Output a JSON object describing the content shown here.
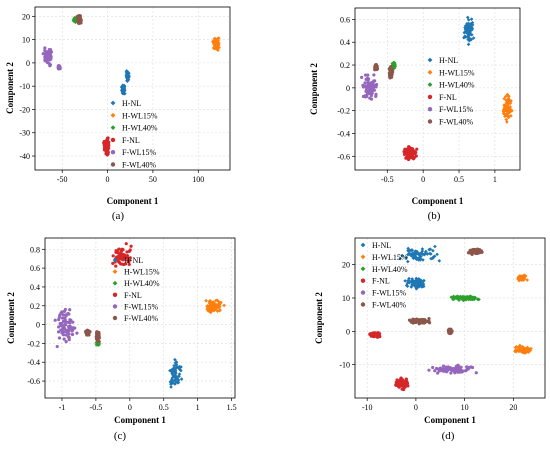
{
  "chart_data": [
    {
      "type": "scatter",
      "caption": "(a)",
      "xlabel": "Component 1",
      "ylabel": "Component 2",
      "xlim": [
        -80,
        135
      ],
      "ylim": [
        -46,
        24
      ],
      "xticks": [
        -50,
        0,
        50,
        100
      ],
      "yticks": [
        -40,
        -30,
        -20,
        -10,
        0,
        10,
        20
      ],
      "legend": "center-right",
      "grid": true,
      "series": [
        {
          "name": "H-NL",
          "color": "#1f77b4",
          "marker": "diamond",
          "clusters": [
            {
              "x": [
                15,
                20
              ],
              "y": [
                -14,
                -9
              ]
            },
            {
              "x": [
                20,
                24
              ],
              "y": [
                -8,
                -3
              ]
            }
          ]
        },
        {
          "name": "H-WL15%",
          "color": "#ff7f0e",
          "marker": "diamond",
          "clusters": [
            {
              "x": [
                115,
                124
              ],
              "y": [
                5,
                12
              ]
            }
          ]
        },
        {
          "name": "H-WL40%",
          "color": "#2ca02c",
          "marker": "diamond",
          "clusters": [
            {
              "x": [
                -38,
                -33
              ],
              "y": [
                17,
                20
              ]
            }
          ]
        },
        {
          "name": "F-NL",
          "color": "#d62728",
          "marker": "circle",
          "clusters": [
            {
              "x": [
                -5,
                3
              ],
              "y": [
                -41,
                -31
              ]
            }
          ]
        },
        {
          "name": "F-WL15%",
          "color": "#9467bd",
          "marker": "circle",
          "clusters": [
            {
              "x": [
                -72,
                -60
              ],
              "y": [
                -2,
                7
              ]
            },
            {
              "x": [
                -55,
                -52
              ],
              "y": [
                -3,
                -1
              ]
            }
          ]
        },
        {
          "name": "F-WL40%",
          "color": "#8c564b",
          "marker": "circle",
          "clusters": [
            {
              "x": [
                -34,
                -28
              ],
              "y": [
                16,
                21
              ]
            }
          ]
        }
      ]
    },
    {
      "type": "scatter",
      "caption": "(b)",
      "xlabel": "Component 1",
      "ylabel": "Component 2",
      "xlim": [
        -0.95,
        1.35
      ],
      "ylim": [
        -0.72,
        0.7
      ],
      "xticks": [
        -0.5,
        0.0,
        0.5,
        1.0
      ],
      "yticks": [
        -0.6,
        -0.4,
        -0.2,
        0.0,
        0.2,
        0.4,
        0.6
      ],
      "legend": "center",
      "grid": true,
      "series": [
        {
          "name": "H-NL",
          "color": "#1f77b4",
          "marker": "diamond",
          "clusters": [
            {
              "x": [
                0.55,
                0.72
              ],
              "y": [
                0.35,
                0.64
              ]
            }
          ]
        },
        {
          "name": "H-WL15%",
          "color": "#ff7f0e",
          "marker": "diamond",
          "clusters": [
            {
              "x": [
                1.1,
                1.25
              ],
              "y": [
                -0.32,
                -0.02
              ]
            }
          ]
        },
        {
          "name": "H-WL40%",
          "color": "#2ca02c",
          "marker": "diamond",
          "clusters": [
            {
              "x": [
                -0.44,
                -0.38
              ],
              "y": [
                0.16,
                0.24
              ]
            }
          ]
        },
        {
          "name": "F-NL",
          "color": "#d62728",
          "marker": "circle",
          "clusters": [
            {
              "x": [
                -0.3,
                -0.07
              ],
              "y": [
                -0.66,
                -0.48
              ]
            }
          ]
        },
        {
          "name": "F-WL15%",
          "color": "#9467bd",
          "marker": "circle",
          "clusters": [
            {
              "x": [
                -0.88,
                -0.6
              ],
              "y": [
                -0.15,
                0.15
              ]
            }
          ]
        },
        {
          "name": "F-WL40%",
          "color": "#8c564b",
          "marker": "circle",
          "clusters": [
            {
              "x": [
                -0.48,
                -0.42
              ],
              "y": [
                0.07,
                0.2
              ]
            },
            {
              "x": [
                -0.68,
                -0.63
              ],
              "y": [
                0.15,
                0.21
              ]
            }
          ]
        }
      ]
    },
    {
      "type": "scatter",
      "caption": "(c)",
      "xlabel": "Component 1",
      "ylabel": "Component 2",
      "xlim": [
        -1.25,
        1.55
      ],
      "ylim": [
        -0.78,
        0.92
      ],
      "xticks": [
        -1.0,
        -0.5,
        0.0,
        0.5,
        1.0,
        1.5
      ],
      "yticks": [
        -0.6,
        -0.4,
        -0.2,
        0.0,
        0.2,
        0.4,
        0.6,
        0.8
      ],
      "legend": "center",
      "grid": true,
      "series": [
        {
          "name": "H-NL",
          "color": "#1f77b4",
          "marker": "diamond",
          "clusters": [
            {
              "x": [
                0.55,
                0.78
              ],
              "y": [
                -0.7,
                -0.32
              ]
            }
          ]
        },
        {
          "name": "H-WL15%",
          "color": "#ff7f0e",
          "marker": "diamond",
          "clusters": [
            {
              "x": [
                1.05,
                1.42
              ],
              "y": [
                0.1,
                0.3
              ]
            }
          ]
        },
        {
          "name": "H-WL40%",
          "color": "#2ca02c",
          "marker": "diamond",
          "clusters": [
            {
              "x": [
                -0.5,
                -0.44
              ],
              "y": [
                -0.23,
                -0.17
              ]
            }
          ]
        },
        {
          "name": "F-NL",
          "color": "#d62728",
          "marker": "circle",
          "clusters": [
            {
              "x": [
                -0.3,
                0.05
              ],
              "y": [
                0.58,
                0.88
              ]
            }
          ]
        },
        {
          "name": "F-WL15%",
          "color": "#9467bd",
          "marker": "circle",
          "clusters": [
            {
              "x": [
                -1.15,
                -0.72
              ],
              "y": [
                -0.28,
                0.22
              ]
            }
          ]
        },
        {
          "name": "F-WL40%",
          "color": "#8c564b",
          "marker": "circle",
          "clusters": [
            {
              "x": [
                -0.66,
                -0.58
              ],
              "y": [
                -0.12,
                -0.05
              ]
            },
            {
              "x": [
                -0.5,
                -0.44
              ],
              "y": [
                -0.2,
                -0.05
              ]
            }
          ]
        }
      ]
    },
    {
      "type": "scatter",
      "caption": "(d)",
      "xlabel": "Component 1",
      "ylabel": "Component 2",
      "xlim": [
        -12.5,
        26.5
      ],
      "ylim": [
        -20,
        28
      ],
      "xticks": [
        -10,
        0,
        10,
        20
      ],
      "yticks": [
        -10,
        0,
        10,
        20
      ],
      "legend": "upper-left",
      "grid": true,
      "series": [
        {
          "name": "H-NL",
          "color": "#1f77b4",
          "marker": "diamond",
          "clusters": [
            {
              "x": [
                -5,
                6
              ],
              "y": [
                20,
                26
              ]
            },
            {
              "x": [
                -3,
                3
              ],
              "y": [
                12,
                17
              ]
            }
          ]
        },
        {
          "name": "H-WL15%",
          "color": "#ff7f0e",
          "marker": "diamond",
          "clusters": [
            {
              "x": [
                19.5,
                24.5
              ],
              "y": [
                -7,
                -4
              ]
            },
            {
              "x": [
                20.5,
                23
              ],
              "y": [
                15,
                17
              ]
            }
          ]
        },
        {
          "name": "H-WL40%",
          "color": "#2ca02c",
          "marker": "diamond",
          "clusters": [
            {
              "x": [
                6,
                14
              ],
              "y": [
                9,
                11
              ]
            }
          ]
        },
        {
          "name": "F-NL",
          "color": "#d62728",
          "marker": "circle",
          "clusters": [
            {
              "x": [
                -5,
                -1
              ],
              "y": [
                -18,
                -13
              ]
            },
            {
              "x": [
                -10,
                -7
              ],
              "y": [
                -2,
                0
              ]
            }
          ]
        },
        {
          "name": "F-WL15%",
          "color": "#9467bd",
          "marker": "circle",
          "clusters": [
            {
              "x": [
                2,
                13
              ],
              "y": [
                -13,
                -10
              ]
            }
          ]
        },
        {
          "name": "F-WL40%",
          "color": "#8c564b",
          "marker": "circle",
          "clusters": [
            {
              "x": [
                -2,
                3.5
              ],
              "y": [
                2,
                4
              ]
            },
            {
              "x": [
                10.5,
                14
              ],
              "y": [
                23,
                25
              ]
            },
            {
              "x": [
                6.5,
                7.5
              ],
              "y": [
                -1,
                1
              ]
            }
          ]
        }
      ]
    }
  ]
}
